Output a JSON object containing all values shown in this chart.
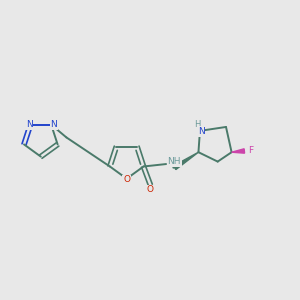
{
  "background_color": "#e8e8e8",
  "bond_color": "#4a7a6a",
  "N_color": "#2244cc",
  "O_color": "#cc2200",
  "F_color": "#cc44aa",
  "H_color": "#6a9999",
  "figsize": [
    3.0,
    3.0
  ],
  "dpi": 100,
  "xlim": [
    0,
    12
  ],
  "ylim": [
    2,
    9
  ]
}
